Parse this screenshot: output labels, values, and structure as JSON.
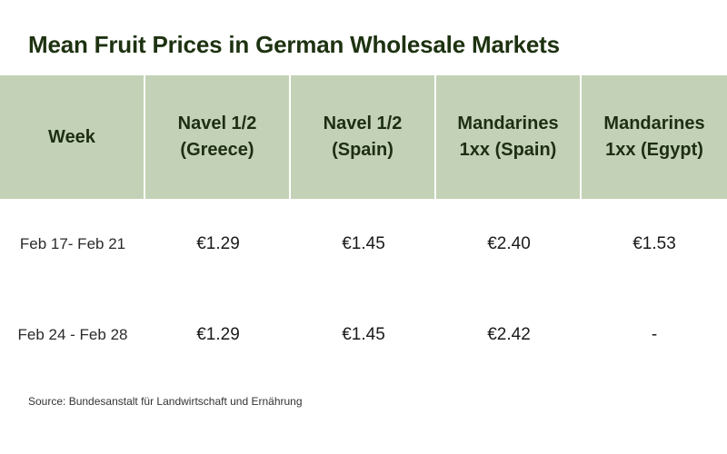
{
  "title": "Mean Fruit Prices in German Wholesale Markets",
  "table": {
    "headers": [
      {
        "line1": "Week",
        "line2": ""
      },
      {
        "line1": "Navel 1/2",
        "line2": "(Greece)"
      },
      {
        "line1": "Navel 1/2",
        "line2": "(Spain)"
      },
      {
        "line1": "Mandarines",
        "line2": "1xx (Spain)"
      },
      {
        "line1": "Mandarines",
        "line2": "1xx (Egypt)"
      }
    ],
    "rows": [
      [
        "Feb 17- Feb 21",
        "€1.29",
        "€1.45",
        "€2.40",
        "€1.53"
      ],
      [
        "Feb 24 - Feb 28",
        "€1.29",
        "€1.45",
        "€2.42",
        "-"
      ]
    ]
  },
  "source": "Source: Bundesanstalt für Landwirtschaft und Ernährung",
  "colors": {
    "header_bg": "#c3d2b6",
    "title_color": "#1d3210"
  }
}
